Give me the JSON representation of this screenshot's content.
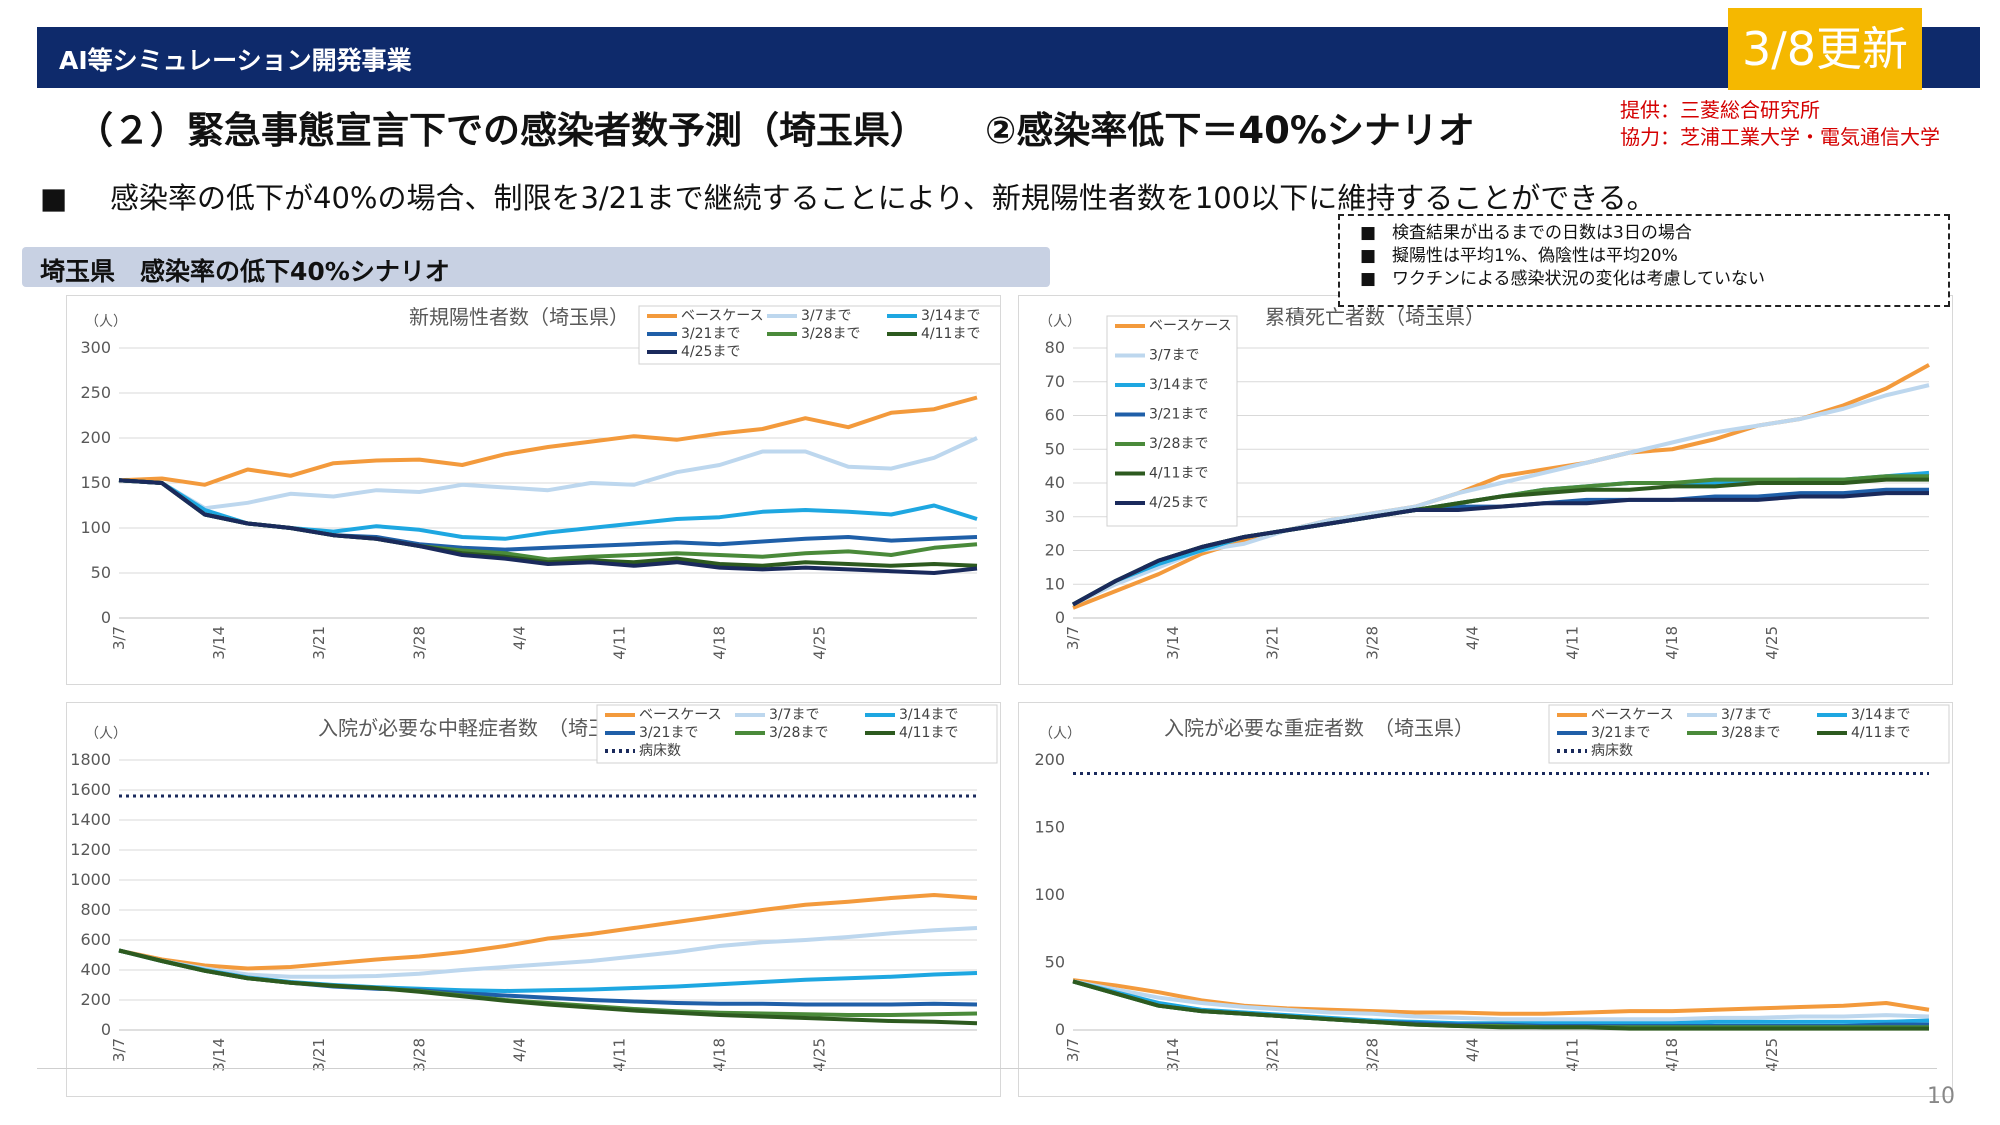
{
  "header": {
    "banner_text": "AI等シミュレーション開発事業",
    "update_badge": "3/8更新",
    "title": "（２）緊急事態宣言下での感染者数予測（埼玉県）",
    "scenario": "②感染率低下＝40%シナリオ",
    "credit_provider": "提供：三菱総合研究所",
    "credit_cooperation": "協力：芝浦工業大学・電気通信大学"
  },
  "bullet": {
    "marker": "■",
    "text": "感染率の低下が40%の場合、制限を3/21まで継続することにより、新規陽性者数を100以下に維持することができる。"
  },
  "subheader": "埼玉県　感染率の低下40%シナリオ",
  "notes": {
    "marker": "■",
    "items": [
      "検査結果が出るまでの日数は3日の場合",
      "擬陽性は平均1%、偽陰性は平均20%",
      "ワクチンによる感染状況の変化は考慮していない"
    ]
  },
  "page_number": "10",
  "colors": {
    "base": "#f39a3c",
    "s37": "#bdd7ee",
    "s314": "#1ea7e1",
    "s321": "#1f5fa8",
    "s328": "#4a8a3a",
    "s411": "#2d5a1f",
    "s425": "#1a2a5c",
    "beds": "#1a2a5c",
    "grid": "#d9d9d9",
    "axis_text": "#595959",
    "banner": "#0e2a6b",
    "badge": "#f5b800",
    "credit": "#d40000"
  },
  "chart_data": [
    {
      "type": "line",
      "title": "新規陽性者数（埼玉県）",
      "ylabel": "（人）",
      "ylim": [
        0,
        300
      ],
      "yticks": [
        0,
        50,
        100,
        150,
        200,
        250,
        300
      ],
      "x_tick_labels": [
        "3/7",
        "3/14",
        "3/21",
        "3/28",
        "4/4",
        "4/11",
        "4/18",
        "4/25"
      ],
      "grid": true,
      "x": [
        0,
        3,
        6,
        9,
        12,
        15,
        18,
        21,
        24,
        27,
        30,
        33,
        36,
        39,
        42,
        45,
        48,
        51,
        54,
        57,
        60
      ],
      "series": [
        {
          "name": "ベースケース",
          "color_key": "base",
          "values": [
            153,
            155,
            148,
            165,
            158,
            172,
            175,
            176,
            170,
            182,
            190,
            196,
            202,
            198,
            205,
            210,
            222,
            212,
            228,
            232,
            245
          ]
        },
        {
          "name": "3/7まで",
          "color_key": "s37",
          "values": [
            153,
            150,
            122,
            128,
            138,
            135,
            142,
            140,
            148,
            145,
            142,
            150,
            148,
            162,
            170,
            185,
            185,
            168,
            166,
            178,
            200
          ]
        },
        {
          "name": "3/14まで",
          "color_key": "s314",
          "values": [
            153,
            150,
            120,
            105,
            100,
            96,
            102,
            98,
            90,
            88,
            95,
            100,
            105,
            110,
            112,
            118,
            120,
            118,
            115,
            125,
            110
          ]
        },
        {
          "name": "3/21まで",
          "color_key": "s321",
          "values": [
            153,
            150,
            115,
            105,
            100,
            92,
            90,
            82,
            78,
            76,
            78,
            80,
            82,
            84,
            82,
            85,
            88,
            90,
            86,
            88,
            90
          ]
        },
        {
          "name": "3/28まで",
          "color_key": "s328",
          "values": [
            153,
            150,
            115,
            105,
            100,
            92,
            88,
            80,
            75,
            72,
            65,
            68,
            70,
            72,
            70,
            68,
            72,
            74,
            70,
            78,
            82
          ]
        },
        {
          "name": "4/11まで",
          "color_key": "s411",
          "values": [
            153,
            150,
            115,
            105,
            100,
            92,
            88,
            80,
            72,
            68,
            62,
            64,
            62,
            66,
            60,
            58,
            62,
            60,
            58,
            60,
            58
          ]
        },
        {
          "name": "4/25まで",
          "color_key": "s425",
          "values": [
            153,
            150,
            115,
            105,
            100,
            92,
            88,
            80,
            70,
            66,
            60,
            62,
            58,
            62,
            56,
            54,
            56,
            54,
            52,
            50,
            55
          ]
        }
      ],
      "legend": "top-right"
    },
    {
      "type": "line",
      "title": "累積死亡者数（埼玉県）",
      "ylabel": "（人）",
      "ylim": [
        0,
        80
      ],
      "yticks": [
        0,
        10,
        20,
        30,
        40,
        50,
        60,
        70,
        80
      ],
      "x_tick_labels": [
        "3/7",
        "3/14",
        "3/21",
        "3/28",
        "4/4",
        "4/11",
        "4/18",
        "4/25"
      ],
      "grid": true,
      "x": [
        0,
        3,
        6,
        9,
        12,
        15,
        18,
        21,
        24,
        27,
        30,
        33,
        36,
        39,
        42,
        45,
        48,
        51,
        54,
        57,
        60
      ],
      "series": [
        {
          "name": "ベースケース",
          "color_key": "base",
          "values": [
            3,
            8,
            13,
            19,
            23,
            26,
            29,
            31,
            33,
            37,
            42,
            44,
            46,
            49,
            50,
            53,
            57,
            59,
            63,
            68,
            75
          ]
        },
        {
          "name": "3/7まで",
          "color_key": "s37",
          "values": [
            4,
            10,
            15,
            20,
            22,
            26,
            29,
            31,
            33,
            37,
            40,
            43,
            46,
            49,
            52,
            55,
            57,
            59,
            62,
            66,
            69
          ]
        },
        {
          "name": "3/14まで",
          "color_key": "s314",
          "values": [
            4,
            11,
            16,
            20,
            24,
            26,
            28,
            30,
            32,
            34,
            36,
            38,
            39,
            40,
            40,
            40,
            40,
            41,
            41,
            42,
            43
          ]
        },
        {
          "name": "3/21まで",
          "color_key": "s321",
          "values": [
            4,
            11,
            17,
            21,
            24,
            26,
            28,
            30,
            32,
            33,
            33,
            34,
            35,
            35,
            35,
            36,
            36,
            37,
            37,
            38,
            38
          ]
        },
        {
          "name": "3/28まで",
          "color_key": "s328",
          "values": [
            4,
            11,
            17,
            21,
            24,
            26,
            28,
            30,
            32,
            34,
            36,
            38,
            39,
            40,
            40,
            41,
            41,
            41,
            41,
            42,
            42
          ]
        },
        {
          "name": "4/11まで",
          "color_key": "s411",
          "values": [
            4,
            11,
            17,
            21,
            24,
            26,
            28,
            30,
            32,
            34,
            36,
            37,
            38,
            38,
            39,
            39,
            40,
            40,
            40,
            41,
            41
          ]
        },
        {
          "name": "4/25まで",
          "color_key": "s425",
          "values": [
            4,
            11,
            17,
            21,
            24,
            26,
            28,
            30,
            32,
            32,
            33,
            34,
            34,
            35,
            35,
            35,
            35,
            36,
            36,
            37,
            37
          ]
        }
      ],
      "legend": "top-left"
    },
    {
      "type": "line",
      "title": "入院が必要な中軽症者数　（埼玉県）",
      "ylabel": "（人）",
      "ylim": [
        0,
        1800
      ],
      "yticks": [
        0,
        200,
        400,
        600,
        800,
        1000,
        1200,
        1400,
        1600,
        1800
      ],
      "x_tick_labels": [
        "3/7",
        "3/14",
        "3/21",
        "3/28",
        "4/4",
        "4/11",
        "4/18",
        "4/25"
      ],
      "grid": true,
      "x": [
        0,
        3,
        6,
        9,
        12,
        15,
        18,
        21,
        24,
        27,
        30,
        33,
        36,
        39,
        42,
        45,
        48,
        51,
        54,
        57,
        60
      ],
      "series": [
        {
          "name": "ベースケース",
          "color_key": "base",
          "values": [
            530,
            470,
            430,
            410,
            420,
            445,
            470,
            490,
            520,
            560,
            610,
            640,
            680,
            720,
            760,
            800,
            835,
            855,
            880,
            900,
            880
          ]
        },
        {
          "name": "3/7まで",
          "color_key": "s37",
          "values": [
            530,
            460,
            410,
            370,
            355,
            355,
            360,
            375,
            400,
            420,
            440,
            460,
            490,
            520,
            560,
            585,
            600,
            620,
            645,
            665,
            680
          ]
        },
        {
          "name": "3/14まで",
          "color_key": "s314",
          "values": [
            530,
            460,
            400,
            350,
            320,
            300,
            285,
            275,
            265,
            260,
            265,
            270,
            280,
            290,
            305,
            320,
            335,
            345,
            355,
            370,
            380
          ]
        },
        {
          "name": "3/21まで",
          "color_key": "s321",
          "values": [
            530,
            460,
            395,
            345,
            315,
            290,
            275,
            265,
            245,
            230,
            215,
            200,
            190,
            180,
            175,
            175,
            170,
            170,
            170,
            175,
            170
          ]
        },
        {
          "name": "3/28まで",
          "color_key": "s328",
          "values": [
            530,
            460,
            395,
            345,
            315,
            295,
            280,
            260,
            230,
            200,
            180,
            160,
            140,
            125,
            115,
            110,
            105,
            100,
            100,
            105,
            110
          ]
        },
        {
          "name": "4/11まで",
          "color_key": "s411",
          "values": [
            530,
            460,
            395,
            345,
            315,
            295,
            280,
            255,
            225,
            195,
            170,
            150,
            130,
            115,
            100,
            90,
            80,
            70,
            60,
            55,
            45
          ]
        },
        {
          "name": "病床数",
          "color_key": "beds",
          "dashed": true,
          "values": [
            1560,
            1560,
            1560,
            1560,
            1560,
            1560,
            1560,
            1560,
            1560,
            1560,
            1560,
            1560,
            1560,
            1560,
            1560,
            1560,
            1560,
            1560,
            1560,
            1560,
            1560
          ]
        }
      ],
      "legend": "top-right"
    },
    {
      "type": "line",
      "title": "入院が必要な重症者数　（埼玉県）",
      "ylabel": "（人）",
      "ylim": [
        0,
        200
      ],
      "yticks": [
        0,
        50,
        100,
        150,
        200
      ],
      "x_tick_labels": [
        "3/7",
        "3/14",
        "3/21",
        "3/28",
        "4/4",
        "4/11",
        "4/18",
        "4/25"
      ],
      "grid": false,
      "x": [
        0,
        3,
        6,
        9,
        12,
        15,
        18,
        21,
        24,
        27,
        30,
        33,
        36,
        39,
        42,
        45,
        48,
        51,
        54,
        57,
        60
      ],
      "series": [
        {
          "name": "ベースケース",
          "color_key": "base",
          "values": [
            37,
            33,
            28,
            22,
            18,
            16,
            15,
            14,
            13,
            13,
            12,
            12,
            13,
            14,
            14,
            15,
            16,
            17,
            18,
            20,
            15
          ]
        },
        {
          "name": "3/7まで",
          "color_key": "s37",
          "values": [
            36,
            30,
            24,
            20,
            17,
            15,
            13,
            12,
            10,
            9,
            8,
            8,
            8,
            8,
            8,
            9,
            9,
            10,
            10,
            11,
            10
          ]
        },
        {
          "name": "3/14まで",
          "color_key": "s314",
          "values": [
            36,
            28,
            20,
            15,
            13,
            11,
            9,
            7,
            6,
            5,
            5,
            5,
            5,
            5,
            5,
            6,
            6,
            6,
            6,
            6,
            7
          ]
        },
        {
          "name": "3/21まで",
          "color_key": "s321",
          "values": [
            36,
            27,
            18,
            14,
            12,
            10,
            8,
            6,
            5,
            4,
            4,
            3,
            3,
            3,
            3,
            3,
            3,
            3,
            3,
            4,
            4
          ]
        },
        {
          "name": "3/28まで",
          "color_key": "s328",
          "values": [
            36,
            27,
            18,
            14,
            12,
            10,
            8,
            6,
            4,
            3,
            3,
            2,
            2,
            2,
            2,
            2,
            2,
            2,
            2,
            2,
            2
          ]
        },
        {
          "name": "4/11まで",
          "color_key": "s411",
          "values": [
            36,
            27,
            18,
            14,
            12,
            10,
            8,
            6,
            4,
            3,
            2,
            2,
            2,
            1,
            1,
            1,
            1,
            1,
            1,
            1,
            1
          ]
        },
        {
          "name": "病床数",
          "color_key": "beds",
          "dashed": true,
          "values": [
            190,
            190,
            190,
            190,
            190,
            190,
            190,
            190,
            190,
            190,
            190,
            190,
            190,
            190,
            190,
            190,
            190,
            190,
            190,
            190,
            190
          ]
        }
      ],
      "legend": "top-right"
    }
  ]
}
